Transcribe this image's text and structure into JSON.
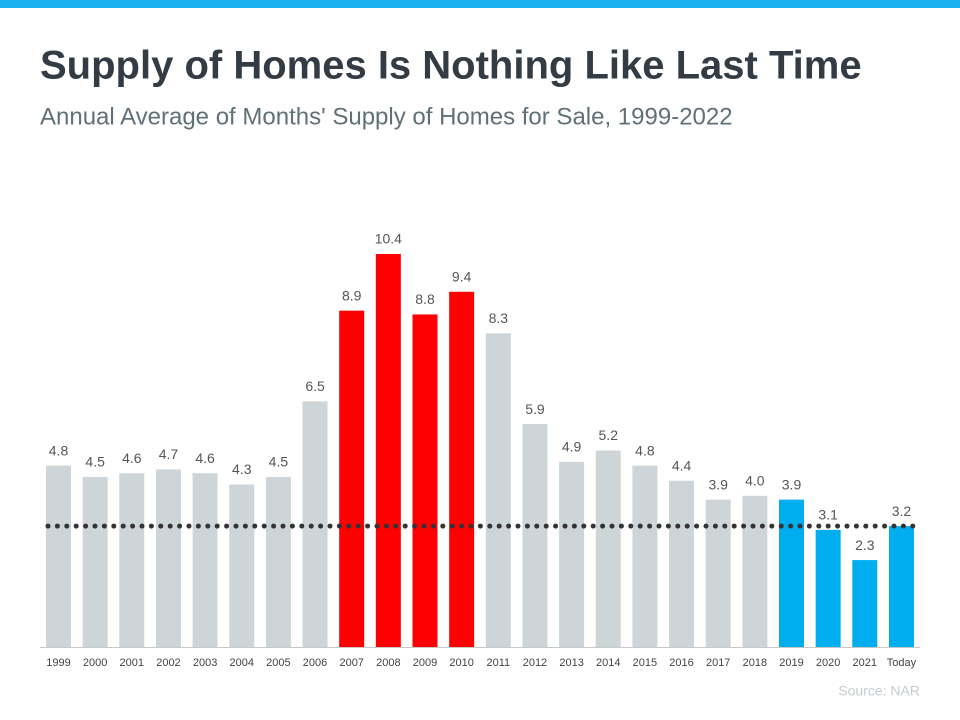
{
  "chart_data": {
    "type": "bar",
    "title": "Supply of Homes Is Nothing Like Last Time",
    "subtitle": "Annual Average of Months' Supply of Homes for Sale, 1999-2022",
    "source": "Source: NAR",
    "categories": [
      "1999",
      "2000",
      "2001",
      "2002",
      "2003",
      "2004",
      "2005",
      "2006",
      "2007",
      "2008",
      "2009",
      "2010",
      "2011",
      "2012",
      "2013",
      "2014",
      "2015",
      "2016",
      "2017",
      "2018",
      "2019",
      "2020",
      "2021",
      "Today"
    ],
    "values": [
      4.8,
      4.5,
      4.6,
      4.7,
      4.6,
      4.3,
      4.5,
      6.5,
      8.9,
      10.4,
      8.8,
      9.4,
      8.3,
      5.9,
      4.9,
      5.2,
      4.8,
      4.4,
      3.9,
      4.0,
      3.9,
      3.1,
      2.3,
      3.2
    ],
    "value_labels": [
      "4.8",
      "4.5",
      "4.6",
      "4.7",
      "4.6",
      "4.3",
      "4.5",
      "6.5",
      "8.9",
      "10.4",
      "8.8",
      "9.4",
      "8.3",
      "5.9",
      "4.9",
      "5.2",
      "4.8",
      "4.4",
      "3.9",
      "4.0",
      "3.9",
      "3.1",
      "2.3",
      "3.2"
    ],
    "colors": [
      "#cdd5d8",
      "#cdd5d8",
      "#cdd5d8",
      "#cdd5d8",
      "#cdd5d8",
      "#cdd5d8",
      "#cdd5d8",
      "#cdd5d8",
      "#ff0000",
      "#ff0000",
      "#ff0000",
      "#ff0000",
      "#cdd5d8",
      "#cdd5d8",
      "#cdd5d8",
      "#cdd5d8",
      "#cdd5d8",
      "#cdd5d8",
      "#cdd5d8",
      "#cdd5d8",
      "#00aeef",
      "#00aeef",
      "#00aeef",
      "#00aeef"
    ],
    "ylim": [
      0,
      10.4
    ]
  }
}
